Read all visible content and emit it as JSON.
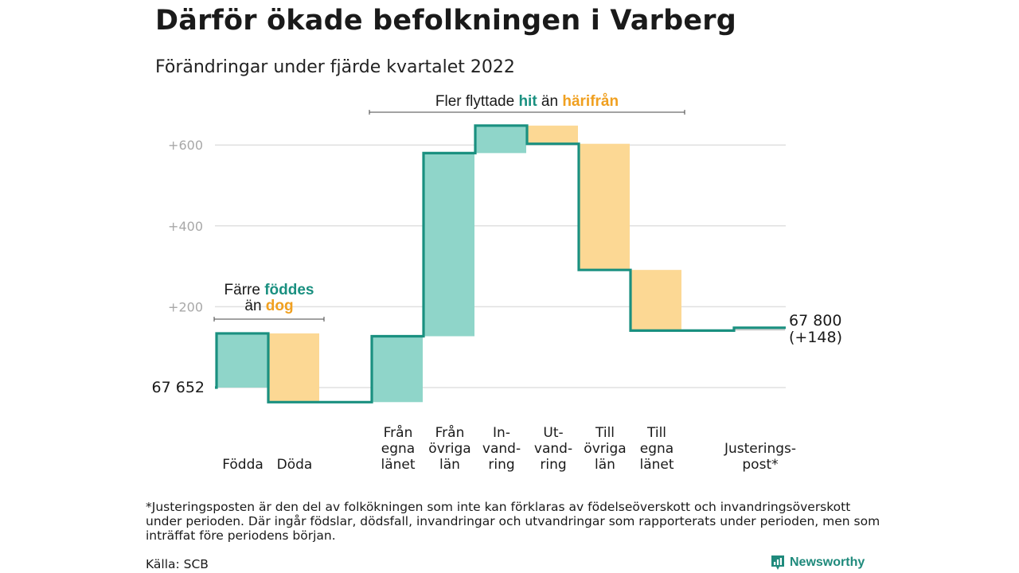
{
  "title": "Därför ökade befolkningen i Varberg",
  "subtitle": "Förändringar under fjärde kvartalet 2022",
  "footnote": "*Justeringsposten är den del av folkökningen som inte kan förklaras av födelseöverskott och invandringsöverskott under perioden. Där ingår födslar, dödsfall, invandringar och utvandringar som rapporterats under perioden, men som inträffat före periodens början.",
  "source": "Källa: SCB",
  "brand": "Newsworthy",
  "colors": {
    "increase": "#8fd5c9",
    "decrease": "#fcd894",
    "line": "#1a9080",
    "adjust": "#cfcfcf",
    "grid": "#e0e0e0",
    "axis": "#a8a8a8",
    "teal_text": "#1a9080",
    "orange_text": "#f0a020"
  },
  "chart_data": {
    "type": "waterfall",
    "start_value": 67652,
    "start_label": "67 652",
    "end_label": "67 800",
    "end_change_label": "(+148)",
    "y_ticks": [
      "+200",
      "+400",
      "+600"
    ],
    "y_tick_values": [
      200,
      400,
      600
    ],
    "ylim": [
      -40,
      660
    ],
    "steps": [
      {
        "label": [
          "Födda"
        ],
        "value": 134,
        "kind": "increase"
      },
      {
        "label": [
          "Döda"
        ],
        "value": -170,
        "kind": "decrease"
      },
      {
        "label": [],
        "value": 0,
        "kind": "spacer"
      },
      {
        "label": [
          "Från",
          "egna",
          "länet"
        ],
        "value": 163,
        "kind": "increase"
      },
      {
        "label": [
          "Från",
          "övriga",
          "län"
        ],
        "value": 453,
        "kind": "increase"
      },
      {
        "label": [
          "In-",
          "vand-",
          "ring"
        ],
        "value": 68,
        "kind": "increase"
      },
      {
        "label": [
          "Ut-",
          "vand-",
          "ring"
        ],
        "value": -45,
        "kind": "decrease"
      },
      {
        "label": [
          "Till",
          "övriga",
          "län"
        ],
        "value": -312,
        "kind": "decrease"
      },
      {
        "label": [
          "Till",
          "egna",
          "länet"
        ],
        "value": -150,
        "kind": "decrease"
      },
      {
        "label": [],
        "value": 0,
        "kind": "spacer"
      },
      {
        "label": [
          "Justerings-",
          "post*"
        ],
        "value": 7,
        "kind": "adjust"
      }
    ],
    "annotations": [
      {
        "parts": [
          [
            "Färre ",
            "plain"
          ],
          [
            "föddes",
            "teal"
          ]
        ],
        "parts2": [
          [
            "än ",
            "plain"
          ],
          [
            "dog",
            "orange"
          ]
        ],
        "span": [
          0,
          1
        ]
      },
      {
        "parts": [
          [
            "Fler flyttade ",
            "plain"
          ],
          [
            "hit",
            "teal"
          ],
          [
            " än ",
            "plain"
          ],
          [
            "härifrån",
            "orange"
          ]
        ],
        "parts2": [],
        "span": [
          3,
          8
        ]
      }
    ]
  }
}
